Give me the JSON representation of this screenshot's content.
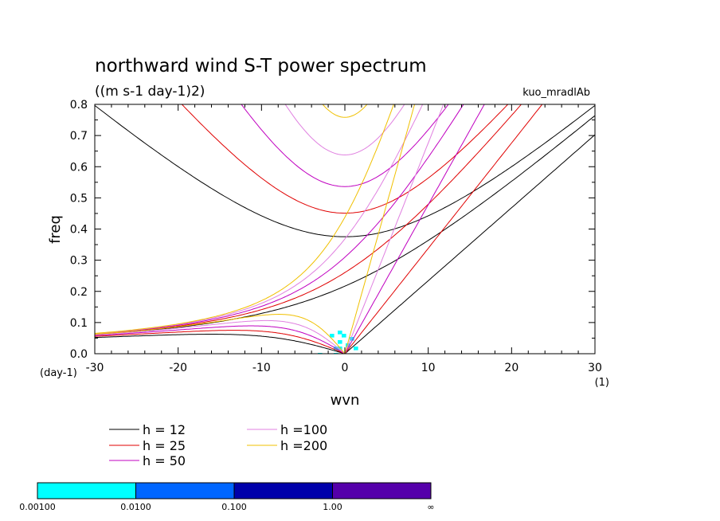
{
  "chart_data": {
    "type": "heatmap",
    "title": "northward wind S-T power spectrum",
    "subtitle": "((m s-1 day-1)2)",
    "annotation": "kuo_mradlAb",
    "xlabel": "wvn",
    "ylabel": "freq",
    "x_unit": "(1)",
    "y_unit": "(day-1)",
    "xlim": [
      -30,
      30
    ],
    "ylim": [
      0,
      0.8
    ],
    "x_ticks": [
      "-30",
      "-20",
      "-10",
      "0",
      "10",
      "20",
      "30"
    ],
    "y_ticks": [
      "0.0",
      "0.1",
      "0.2",
      "0.3",
      "0.4",
      "0.5",
      "0.6",
      "0.7",
      "0.8"
    ],
    "grid": false,
    "legend_position": "bottom-left",
    "series": [
      {
        "name": "h = 12",
        "color": "#000000",
        "h": 12
      },
      {
        "name": "h = 25",
        "color": "#e00000",
        "h": 25
      },
      {
        "name": "h = 50",
        "color": "#c000c0",
        "h": 50
      },
      {
        "name": "h =100",
        "color": "#e080e0",
        "h": 100
      },
      {
        "name": "h =200",
        "color": "#f0c000",
        "h": 200
      }
    ],
    "colorbar": {
      "labels": [
        "0.00100",
        "0.0100",
        "0.100",
        "1.00",
        "∞"
      ],
      "colors": [
        "#00ffff",
        "#0066ff",
        "#0000aa",
        "#5500aa"
      ]
    }
  }
}
